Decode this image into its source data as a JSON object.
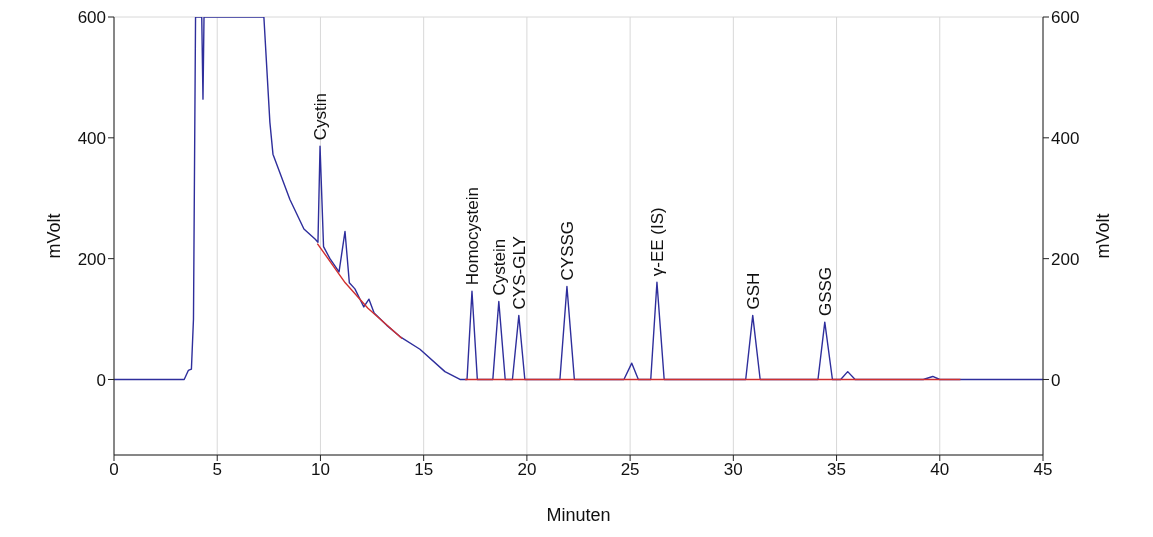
{
  "chart_data": {
    "type": "line",
    "xlabel": "Minuten",
    "ylabel": "mVolt",
    "y2label": "mVolt",
    "xlim": [
      0,
      45
    ],
    "xticks": [
      0,
      5,
      10,
      15,
      20,
      25,
      30,
      35,
      40,
      45
    ],
    "ylim": [
      -125,
      600
    ],
    "yticks": [
      0,
      200,
      400,
      600
    ],
    "y2lim": [
      -125,
      600
    ],
    "y2ticks": [
      0,
      200,
      400,
      600
    ],
    "grid": true,
    "marker": "none",
    "line_style": "solid",
    "series": [
      {
        "color": "#2e2e9c",
        "x": [
          0,
          3.4,
          3.6,
          3.75,
          3.85,
          3.95,
          4.25,
          4.31,
          4.36,
          7.26,
          7.55,
          7.7,
          8.52,
          9.2,
          9.75,
          9.88,
          9.98,
          10.15,
          10.46,
          10.9,
          11.19,
          11.4,
          11.67,
          12.1,
          12.35,
          12.6,
          13.2,
          13.85,
          14.82,
          16.03,
          16.76,
          17.1,
          17.34,
          17.6,
          18.35,
          18.64,
          18.95,
          19.3,
          19.61,
          19.9,
          21.6,
          21.94,
          22.3,
          24.7,
          25.08,
          25.4,
          26.0,
          26.3,
          26.65,
          30.6,
          30.94,
          31.3,
          34.1,
          34.43,
          34.8,
          35.2,
          35.54,
          35.9,
          39.2,
          39.66,
          40,
          42.1,
          45
        ],
        "values": [
          0,
          0,
          15,
          17,
          100,
          600,
          600,
          464,
          600,
          600,
          426,
          373,
          298,
          249,
          232,
          227,
          386,
          220,
          200,
          178,
          245,
          160,
          150,
          120,
          133,
          110,
          90,
          71,
          50,
          13,
          0,
          0,
          146,
          0,
          0,
          129,
          0,
          0,
          106,
          0,
          0,
          154,
          0,
          0,
          27,
          0,
          0,
          161,
          0,
          0,
          106,
          0,
          0,
          95,
          0,
          0,
          13,
          0,
          0,
          5,
          0,
          0,
          0
        ]
      },
      {
        "color": "#d03030",
        "x": [
          9.85,
          11.2,
          12.3,
          13.95,
          14.5,
          17,
          41
        ],
        "values": [
          225,
          160,
          118,
          68,
          null,
          0,
          0
        ]
      }
    ],
    "annotations": [
      {
        "text": "Cystin",
        "x": 9.98,
        "y": 386
      },
      {
        "text": "Homocystein",
        "x": 17.34,
        "y": 146
      },
      {
        "text": "Cystein",
        "x": 18.64,
        "y": 129
      },
      {
        "text": "CYS-GLY",
        "x": 19.61,
        "y": 106
      },
      {
        "text": "CYSSG",
        "x": 21.94,
        "y": 154
      },
      {
        "text": "γ-EE (IS)",
        "x": 26.3,
        "y": 161
      },
      {
        "text": "GSH",
        "x": 30.94,
        "y": 106
      },
      {
        "text": "GSSG",
        "x": 34.43,
        "y": 95
      }
    ]
  }
}
